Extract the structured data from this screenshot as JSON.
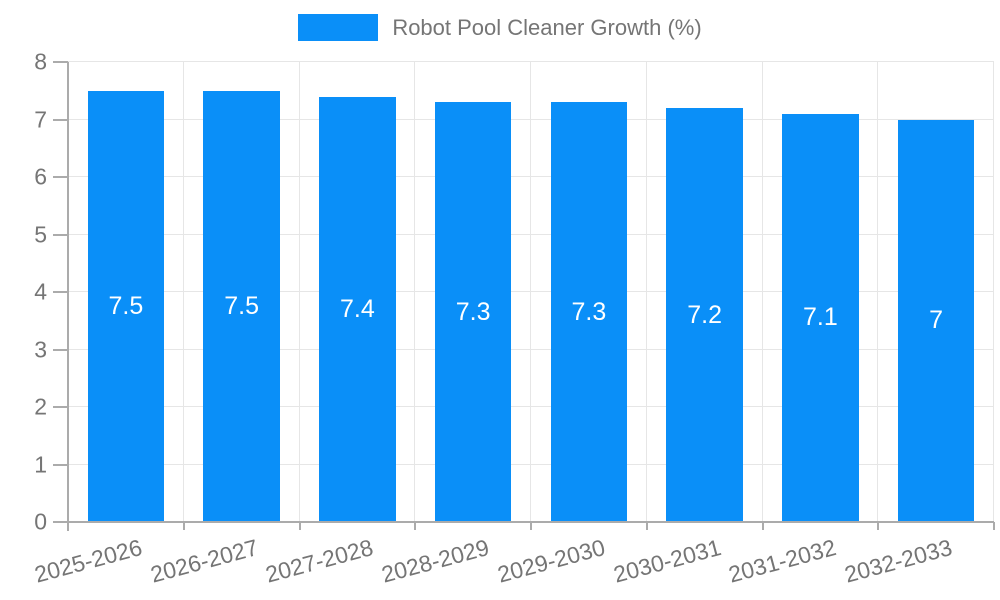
{
  "chart_data": {
    "type": "bar",
    "title": "",
    "xlabel": "",
    "ylabel": "",
    "categories": [
      "2025-2026",
      "2026-2027",
      "2027-2028",
      "2028-2029",
      "2029-2030",
      "2030-2031",
      "2031-2032",
      "2032-2033"
    ],
    "series": [
      {
        "name": "Robot Pool Cleaner Growth (%)",
        "values": [
          7.5,
          7.5,
          7.4,
          7.3,
          7.3,
          7.2,
          7.1,
          7
        ],
        "value_labels": [
          "7.5",
          "7.5",
          "7.4",
          "7.3",
          "7.3",
          "7.2",
          "7.1",
          "7"
        ]
      }
    ],
    "ylim": [
      0,
      8
    ],
    "yticks": [
      0,
      1,
      2,
      3,
      4,
      5,
      6,
      7,
      8
    ],
    "grid": true,
    "legend_position": "top-center",
    "colors": {
      "bar": "#0a8ff8",
      "bar_label": "#ffffff",
      "axis_text": "#757575",
      "axis_line": "#ababab",
      "gridline": "#e6e6e6"
    }
  },
  "legend": {
    "label": "Robot Pool Cleaner Growth (%)"
  }
}
